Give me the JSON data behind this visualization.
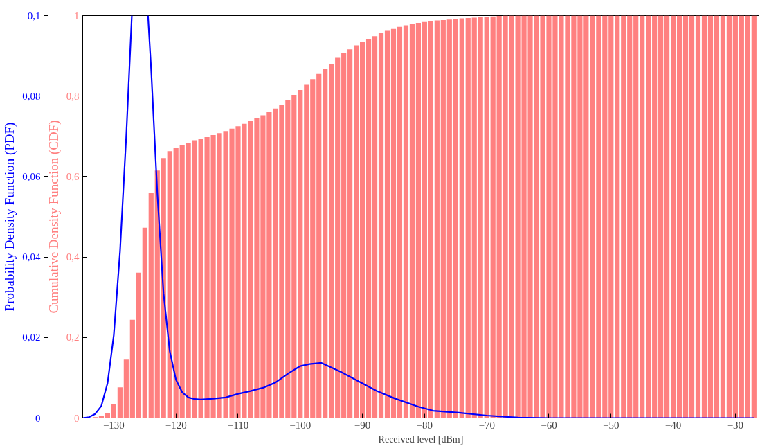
{
  "chart_data": {
    "type": "bar",
    "xlabel": "Received level [dBm]",
    "ylabel": "Probability Density Function (PDF)",
    "y2label": "Cumulative Density Function (CDF)",
    "x": [
      -135,
      -134,
      -133,
      -132,
      -131,
      -130,
      -129,
      -128,
      -127,
      -126,
      -125,
      -124,
      -123,
      -122,
      -121,
      -120,
      -119,
      -118,
      -117,
      -116,
      -115,
      -114,
      -113,
      -112,
      -111,
      -110,
      -109,
      -108,
      -107,
      -106,
      -105,
      -104,
      -103,
      -102,
      -101,
      -100,
      -99,
      -98,
      -97,
      -96,
      -95,
      -94,
      -93,
      -92,
      -91,
      -90,
      -89,
      -88,
      -87,
      -86,
      -85,
      -84,
      -83,
      -82,
      -81,
      -80,
      -79,
      -78,
      -77,
      -76,
      -75,
      -74,
      -73,
      -72,
      -71,
      -70,
      -69,
      -68,
      -67,
      -66,
      -65,
      -64,
      -63,
      -62,
      -61,
      -60,
      -59,
      -58,
      -57,
      -56,
      -55,
      -54,
      -53,
      -52,
      -51,
      -50,
      -49,
      -48,
      -47,
      -46,
      -45,
      -44,
      -43,
      -42,
      -41,
      -40,
      -39,
      -38,
      -37,
      -36,
      -35,
      -34,
      -33,
      -32,
      -31,
      -30,
      -29,
      -28,
      -27
    ],
    "series": [
      {
        "axis": "y2",
        "color": "#ff8080",
        "values": [
          0,
          0,
          0.002,
          0.005,
          0.013,
          0.034,
          0.076,
          0.145,
          0.244,
          0.361,
          0.473,
          0.56,
          0.615,
          0.646,
          0.663,
          0.672,
          0.679,
          0.684,
          0.69,
          0.694,
          0.698,
          0.703,
          0.708,
          0.713,
          0.719,
          0.725,
          0.731,
          0.738,
          0.745,
          0.752,
          0.76,
          0.769,
          0.779,
          0.79,
          0.803,
          0.815,
          0.828,
          0.842,
          0.855,
          0.868,
          0.879,
          0.895,
          0.906,
          0.916,
          0.926,
          0.935,
          0.942,
          0.949,
          0.956,
          0.962,
          0.967,
          0.972,
          0.976,
          0.979,
          0.982,
          0.984,
          0.986,
          0.988,
          0.989,
          0.99,
          0.992,
          0.993,
          0.994,
          0.995,
          0.996,
          0.997,
          0.998,
          0.999,
          1,
          1,
          1,
          1,
          1,
          1,
          1,
          1,
          1,
          1,
          1,
          1,
          1,
          1,
          1,
          1,
          1,
          1,
          1,
          1,
          1,
          1,
          1,
          1,
          1,
          1,
          1,
          1,
          1,
          1,
          1,
          1,
          1,
          1,
          1,
          1,
          1,
          1,
          1,
          1,
          1
        ]
      },
      {
        "type": "line",
        "color": "#0000ff",
        "x": [
          -135,
          -134,
          -133,
          -132,
          -131,
          -130,
          -129,
          -128,
          -127.1,
          -126,
          -124.5,
          -124,
          -123,
          -122,
          -121,
          -120,
          -119,
          -118,
          -117,
          -116,
          -114,
          -112,
          -110,
          -108,
          -106,
          -104,
          -102,
          -100,
          -98.5,
          -96.6,
          -93.4,
          -90,
          -87.7,
          -84.7,
          -81,
          -78.6,
          -74.5,
          -70,
          -65,
          -60,
          -50,
          -40,
          -30,
          -27
        ],
        "values": [
          0,
          0.0002,
          0.001,
          0.003,
          0.0087,
          0.0206,
          0.0414,
          0.07,
          0.1,
          null,
          0.1,
          0.0869,
          0.0559,
          0.031,
          0.0166,
          0.0095,
          0.0064,
          0.0051,
          0.0047,
          0.0046,
          0.0048,
          0.0051,
          0.006,
          0.0067,
          0.0075,
          0.0088,
          0.011,
          0.0129,
          0.0134,
          0.0137,
          0.0114,
          0.0086,
          0.0067,
          0.0048,
          0.0028,
          0.0018,
          0.0013,
          0.0006,
          0.0001,
          0,
          0,
          0,
          0,
          0
        ]
      }
    ],
    "xlim": [
      -135,
      -26.2
    ],
    "xticks": [
      {
        "value": -130,
        "label": "−130"
      },
      {
        "value": -120,
        "label": "−120"
      },
      {
        "value": -110,
        "label": "−110"
      },
      {
        "value": -100,
        "label": "−100"
      },
      {
        "value": -90,
        "label": "−90"
      },
      {
        "value": -80,
        "label": "−80"
      },
      {
        "value": -70,
        "label": "−70"
      },
      {
        "value": -60,
        "label": "−60"
      },
      {
        "value": -50,
        "label": "−50"
      },
      {
        "value": -40,
        "label": "−40"
      },
      {
        "value": -30,
        "label": "−30"
      }
    ],
    "ylim": [
      0,
      0.1
    ],
    "yticks": [
      0,
      {
        "value": 0.02,
        "label": "0,02"
      },
      {
        "value": 0.04,
        "label": "0,04"
      },
      {
        "value": 0.06,
        "label": "0,06"
      },
      {
        "value": 0.08,
        "label": "0,08"
      },
      {
        "value": 0.1,
        "label": "0,1"
      }
    ],
    "y2lim": [
      0,
      1
    ],
    "y2ticks": [
      0,
      {
        "value": 0.2,
        "label": "0,2"
      },
      {
        "value": 0.4,
        "label": "0,4"
      },
      {
        "value": 0.6,
        "label": "0,6"
      },
      {
        "value": 0.8,
        "label": "0,8"
      },
      1
    ]
  }
}
